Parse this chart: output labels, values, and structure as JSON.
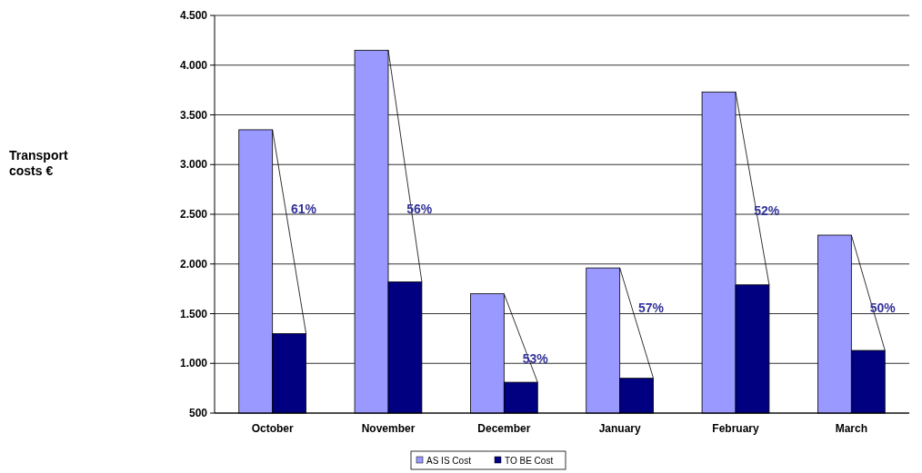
{
  "chart_data": {
    "type": "bar",
    "categories": [
      "October",
      "November",
      "December",
      "January",
      "February",
      "March"
    ],
    "series": [
      {
        "name": "AS IS Cost",
        "color": "#9999ff",
        "values": [
          3350,
          4150,
          1700,
          1960,
          3730,
          2290
        ]
      },
      {
        "name": "TO BE Cost",
        "color": "#000080",
        "values": [
          1300,
          1820,
          810,
          850,
          1790,
          1130
        ]
      }
    ],
    "ylim": [
      500,
      4500
    ],
    "yticks": [
      500,
      {
        "value": 1000,
        "label": "1.000"
      },
      {
        "value": 1500,
        "label": "1.500"
      },
      {
        "value": 2000,
        "label": "2.000"
      },
      {
        "value": 2500,
        "label": "2.500"
      },
      {
        "value": 3000,
        "label": "3.000"
      },
      {
        "value": 3500,
        "label": "3.500"
      },
      {
        "value": 4000,
        "label": "4.000"
      },
      {
        "value": 4500,
        "label": "4.500"
      }
    ],
    "annotations": [
      {
        "text": "61%",
        "x": "October",
        "y": 2550
      },
      {
        "text": "56%",
        "x": "November",
        "y": 2550
      },
      {
        "text": "53%",
        "x": "December",
        "y": 1050
      },
      {
        "text": "57%",
        "x": "January",
        "y": 1560
      },
      {
        "text": "52%",
        "x": "February",
        "y": 2540
      },
      {
        "text": "50%",
        "x": "March",
        "y": 1560
      },
      "Transport costs €"
    ],
    "grid": "y",
    "legend": "bottom"
  }
}
